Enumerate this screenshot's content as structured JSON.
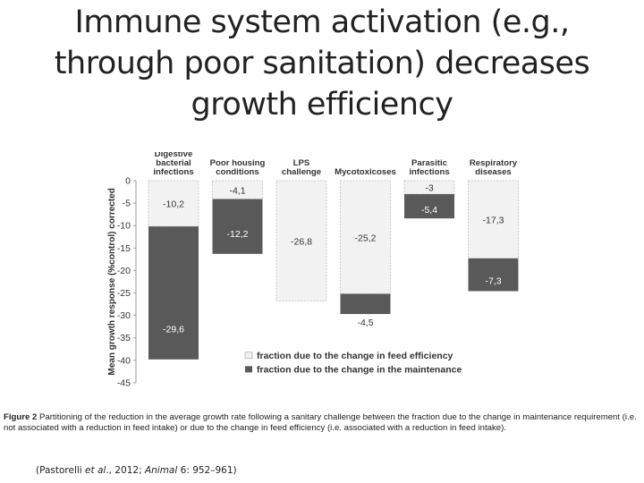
{
  "title_lines": [
    "Immune system activation (e.g.,",
    "through poor sanitation) decreases",
    "growth efficiency"
  ],
  "chart_data": {
    "type": "bar",
    "stacked": true,
    "ylabel": "Mean growth response (%control) corrected",
    "ylim": [
      -45,
      0
    ],
    "yticks": [
      0,
      -5,
      -10,
      -15,
      -20,
      -25,
      -30,
      -35,
      -40,
      -45
    ],
    "categories": [
      "Digestive bacterial infections",
      "Poor housing conditions",
      "LPS challenge",
      "Mycotoxicoses",
      "Parasitic infections",
      "Respiratory diseases"
    ],
    "category_label_lines": [
      [
        "Digestive",
        "bacterial",
        "infections"
      ],
      [
        "Poor housing",
        "conditions"
      ],
      [
        "LPS",
        "challenge"
      ],
      [
        "Mycotoxicoses"
      ],
      [
        "Parasitic",
        "infections"
      ],
      [
        "Respiratory",
        "diseases"
      ]
    ],
    "series": [
      {
        "name": "fraction due to the change in feed efficiency",
        "color": "#f2f2f2",
        "values": [
          -10.2,
          -4.1,
          -26.8,
          -25.2,
          -3,
          -17.3
        ],
        "labels": [
          "-10,2",
          "-4,1",
          "-26,8",
          "-25,2",
          "-3",
          "-17,3"
        ]
      },
      {
        "name": "fraction due to the change in the maintenance",
        "color": "#595959",
        "values": [
          -29.6,
          -12.2,
          0,
          -4.5,
          -5.4,
          -7.3
        ],
        "labels": [
          "-29,6",
          "-12,2",
          "",
          "-4,5",
          "-5,4",
          "-7,3"
        ]
      }
    ],
    "legend_position": "bottom-right"
  },
  "caption": {
    "label": "Figure 2",
    "text": "Partitioning of the reduction in the average growth rate following a sanitary challenge between the fraction due to the change in maintenance requirement (i.e. not associated with a reduction in feed intake) or due to the change in feed efficiency (i.e. associated with a reduction in feed intake)."
  },
  "citation": {
    "authors": "(Pastorelli ",
    "etal": "et al",
    "year": "., 2012; ",
    "journal": "Animal",
    "pages": " 6: 952–961)"
  }
}
